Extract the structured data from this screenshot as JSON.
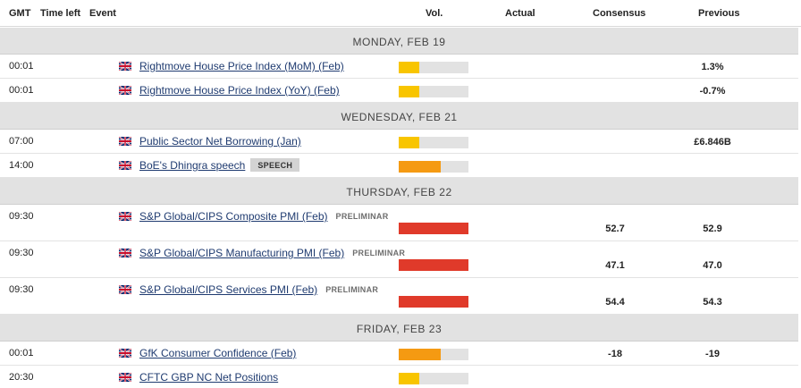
{
  "columns": {
    "gmt": "GMT",
    "time_left": "Time left",
    "event": "Event",
    "vol": "Vol.",
    "actual": "Actual",
    "consensus": "Consensus",
    "previous": "Previous"
  },
  "colors": {
    "low": "#f8c500",
    "medium": "#f59a12",
    "high": "#e03a2a"
  },
  "days": [
    {
      "date": "MONDAY, FEB 19",
      "events": [
        {
          "time": "00:01",
          "country": "UK",
          "name": "Rightmove House Price Index (MoM) (Feb)",
          "tag": "",
          "volatility": "low",
          "vol_level": 0.3,
          "actual": "",
          "consensus": "",
          "previous": "1.3%"
        },
        {
          "time": "00:01",
          "country": "UK",
          "name": "Rightmove House Price Index (YoY) (Feb)",
          "tag": "",
          "volatility": "low",
          "vol_level": 0.3,
          "actual": "",
          "consensus": "",
          "previous": "-0.7%"
        }
      ]
    },
    {
      "date": "WEDNESDAY, FEB 21",
      "events": [
        {
          "time": "07:00",
          "country": "UK",
          "name": "Public Sector Net Borrowing (Jan)",
          "tag": "",
          "volatility": "low",
          "vol_level": 0.3,
          "actual": "",
          "consensus": "",
          "previous": "£6.846B"
        },
        {
          "time": "14:00",
          "country": "UK",
          "name": "BoE's Dhingra speech",
          "tag": "SPEECH",
          "volatility": "medium",
          "vol_level": 0.6,
          "actual": "",
          "consensus": "",
          "previous": ""
        }
      ]
    },
    {
      "date": "THURSDAY, FEB 22",
      "events": [
        {
          "time": "09:30",
          "country": "UK",
          "name": "S&P Global/CIPS Composite PMI (Feb)",
          "tag": "PRELIMINAR",
          "volatility": "high",
          "vol_level": 1.0,
          "actual": "",
          "consensus": "52.7",
          "previous": "52.9"
        },
        {
          "time": "09:30",
          "country": "UK",
          "name": "S&P Global/CIPS Manufacturing PMI (Feb)",
          "tag": "PRELIMINAR",
          "volatility": "high",
          "vol_level": 1.0,
          "actual": "",
          "consensus": "47.1",
          "previous": "47.0"
        },
        {
          "time": "09:30",
          "country": "UK",
          "name": "S&P Global/CIPS Services PMI (Feb)",
          "tag": "PRELIMINAR",
          "volatility": "high",
          "vol_level": 1.0,
          "actual": "",
          "consensus": "54.4",
          "previous": "54.3"
        }
      ]
    },
    {
      "date": "FRIDAY, FEB 23",
      "events": [
        {
          "time": "00:01",
          "country": "UK",
          "name": "GfK Consumer Confidence (Feb)",
          "tag": "",
          "volatility": "medium",
          "vol_level": 0.6,
          "actual": "",
          "consensus": "-18",
          "previous": "-19"
        },
        {
          "time": "20:30",
          "country": "UK",
          "name": "CFTC GBP NC Net Positions",
          "tag": "",
          "volatility": "low",
          "vol_level": 0.3,
          "actual": "",
          "consensus": "",
          "previous": ""
        }
      ]
    }
  ]
}
